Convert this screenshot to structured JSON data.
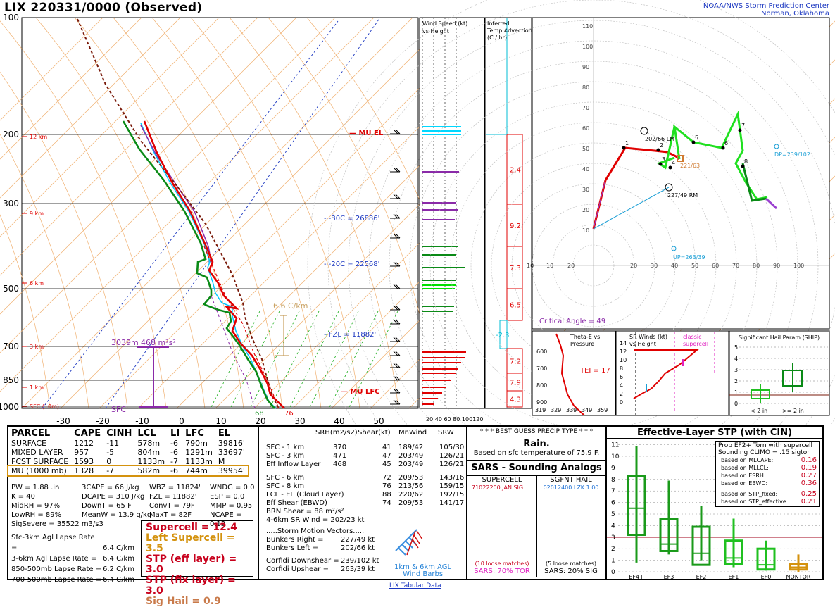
{
  "header": {
    "title": "LIX  220331/0000  (Observed)",
    "org_line1": "NOAA/NWS Storm Prediction Center",
    "org_line2": "Norman, Oklahoma"
  },
  "skewt": {
    "pressure_labels": [
      "100",
      "200",
      "300",
      "500",
      "700",
      "850",
      "1000"
    ],
    "height_labels": [
      "12 km",
      "9 km",
      "6 km",
      "3 km",
      "1 km",
      "SFC (10m)"
    ],
    "temp_labels": [
      "-30",
      "-20",
      "-10",
      "0",
      "10",
      "20",
      "30",
      "40",
      "50"
    ],
    "annotations": {
      "mu_el": "MU EL",
      "mu_lfc": "MU LFC",
      "iso_30": "-30C = 26886'",
      "iso_20": "-20C = 22568'",
      "fzl": "FZL = 11882'",
      "lapse": "6.6 C/km",
      "sfc": "SFC",
      "height_3039": "3039m",
      "srh_468": "468 m²s²",
      "t68": "68",
      "t76": "76"
    }
  },
  "wind_speed_panel": {
    "title": "Wind Speed (kt)\nvs Height",
    "axis": "20 40 60 80 100120"
  },
  "temp_adv_panel": {
    "title": "Inferred\nTemp Advection\n(C / hr)",
    "values": [
      "2.4",
      "9.2",
      "7.3",
      "6.5",
      "-2.3",
      "7.2",
      "7.9",
      "4.3"
    ]
  },
  "hodograph": {
    "y_ticks": [
      "110",
      "100",
      "90",
      "80",
      "70",
      "60",
      "50",
      "40",
      "30",
      "20",
      "10"
    ],
    "x_ticks": [
      "10",
      "20",
      "30",
      "40",
      "50",
      "60",
      "70",
      "80",
      "90",
      "100"
    ],
    "lm": "202/66 LM",
    "rm": "227/49 RM",
    "mean": "221/63",
    "dp": "DP=239/102",
    "up": "UP=263/39",
    "critical_angle": "Critical Angle = 49"
  },
  "theta_panel": {
    "title": "Theta-E vs\nPressure",
    "tei": "TEI = 17",
    "y_ticks": [
      "600",
      "700",
      "800",
      "900"
    ],
    "x_ticks": [
      "319",
      "329",
      "339",
      "349",
      "359"
    ]
  },
  "sr_panel": {
    "title": "SR Winds (kt)\nvs Height",
    "label": "classic\nsupercell",
    "y_ticks": [
      "14",
      "12",
      "10",
      "8",
      "6",
      "4",
      "2",
      "0"
    ]
  },
  "ship_panel": {
    "title": "Significant Hail Param (SHIP)",
    "y_ticks": [
      "5",
      "4",
      "3",
      "2",
      "1",
      "0"
    ],
    "x_left": "< 2 in",
    "x_right": ">= 2 in"
  },
  "parcel_table": {
    "headers": [
      "PARCEL",
      "CAPE",
      "CINH",
      "LCL",
      "LI",
      "LFC",
      "EL"
    ],
    "rows": [
      [
        "SURFACE",
        "1212",
        "-11",
        "578m",
        "-6",
        "790m",
        "39816'"
      ],
      [
        "MIXED LAYER",
        "957",
        "-5",
        "804m",
        "-6",
        "1291m",
        "33697'"
      ],
      [
        "FCST SURFACE",
        "1593",
        "0",
        "1133m",
        "-7",
        "1133m",
        "M"
      ],
      [
        "MU  (1000 mb)",
        "1328",
        "-7",
        "582m",
        "-6",
        "744m",
        "39954'"
      ]
    ]
  },
  "thermo": {
    "col1": [
      "PW = 1.88 .in",
      "K = 40",
      "MidRH = 97%",
      "LowRH = 89%",
      "SigSevere = 35522 m3/s3"
    ],
    "col2": [
      "3CAPE = 66 J/kg",
      "DCAPE = 310 J/kg",
      "DownT = 65 F",
      "MeanW = 13.9 g/kg"
    ],
    "col3": [
      "WBZ = 11824'",
      "FZL = 11882'",
      "ConvT = 79F",
      "MaxT = 82F"
    ],
    "col4": [
      "WNDG = 0.0",
      "ESP = 0.0",
      "MMP = 0.95",
      "NCAPE = 0.12"
    ]
  },
  "lapse_rates": [
    [
      "Sfc-3km Agl Lapse Rate =",
      "6.4 C/km"
    ],
    [
      "3-6km Agl Lapse Rate =",
      "6.4 C/km"
    ],
    [
      "850-500mb Lapse Rate =",
      "6.2 C/km"
    ],
    [
      "700-500mb Lapse Rate =",
      "6.4 C/km"
    ]
  ],
  "composite": [
    {
      "text": "Supercell = 12.4",
      "color": "#c8001c"
    },
    {
      "text": "Left Supercell = 3.5",
      "color": "#d4920e"
    },
    {
      "text": "STP (eff layer) = 3.0",
      "color": "#c8001c"
    },
    {
      "text": "STP (fix layer) = 3.0",
      "color": "#c8001c"
    },
    {
      "text": "Sig Hail = 0.9",
      "color": "#c97a4a"
    }
  ],
  "kinematics": {
    "headers": [
      "SRH(m2/s2)",
      "Shear(kt)",
      "MnWind",
      "SRW"
    ],
    "rows": [
      [
        "SFC - 1 km",
        "370",
        "41",
        "189/42",
        "105/30"
      ],
      [
        "SFC - 3 km",
        "471",
        "47",
        "203/49",
        "126/21"
      ],
      [
        "Eff Inflow Layer",
        "468",
        "45",
        "203/49",
        "126/21"
      ],
      [
        "SFC - 6 km",
        "",
        "72",
        "209/53",
        "143/16"
      ],
      [
        "SFC - 8 km",
        "",
        "76",
        "213/56",
        "159/15"
      ],
      [
        "LCL - EL (Cloud Layer)",
        "",
        "88",
        "220/62",
        "192/15"
      ],
      [
        "Eff Shear (EBWD)",
        "",
        "74",
        "209/53",
        "141/17"
      ]
    ],
    "brn": "BRN Shear =  88 m²/s²",
    "sr46": "4-6km SR Wind =        202/23 kt",
    "motion_title": ".....Storm Motion Vectors.....",
    "motions": [
      [
        "Bunkers Right =",
        "227/49 kt"
      ],
      [
        "Bunkers Left =",
        "202/66 kt"
      ],
      [
        "Corfidi Downshear =",
        "239/102 kt"
      ],
      [
        "Corfidi Upshear =",
        "263/39 kt"
      ]
    ],
    "barb_label": "1km & 6km AGL\nWind Barbs"
  },
  "precip": {
    "title": "* * * BEST GUESS PRECIP TYPE * * *",
    "type": "Rain.",
    "basis": "Based on sfc temperature of 75.9 F."
  },
  "sars": {
    "title": "SARS - Sounding Analogs",
    "col1": "SUPERCELL",
    "col2": "SGFNT HAIL",
    "match1": "71022200.JAN   SIG",
    "match2": "02012400.LZK  1.00",
    "loose1": "(10 loose matches)",
    "loose2": "(5 loose matches)",
    "pct1": "SARS:  70% TOR",
    "pct2": "SARS:  20% SIG"
  },
  "stp_panel": {
    "title": "Effective-Layer STP (with CIN)",
    "prob_title1": "Prob EF2+ Torn with supercell",
    "prob_title2": "Sounding CLIMO = .15 sigtor",
    "probs": [
      [
        "based on MLCAPE:",
        "0.16"
      ],
      [
        "based on MLLCL:",
        "0.19"
      ],
      [
        "based on ESRH:",
        "0.27"
      ],
      [
        "based on EBWD:",
        "0.36"
      ],
      [
        "based on STP_fixed:",
        "0.25"
      ],
      [
        "based on STP_effective:",
        "0.21"
      ]
    ],
    "y_ticks": [
      "11",
      "10",
      "9",
      "8",
      "7",
      "6",
      "5",
      "4",
      "3",
      "2",
      "1",
      "0"
    ],
    "x_labels": [
      "EF4+",
      "EF3",
      "EF2",
      "EF1",
      "EF0",
      "NONTOR"
    ]
  },
  "footer": "LIX Tabular Data",
  "colors": {
    "red": "#e00000",
    "green": "#0a8a16",
    "blue": "#1a36c0",
    "purple": "#8a2aa8",
    "cyan": "#00bcd4",
    "brown": "#7a1a0a",
    "orange": "#c8b26a"
  }
}
